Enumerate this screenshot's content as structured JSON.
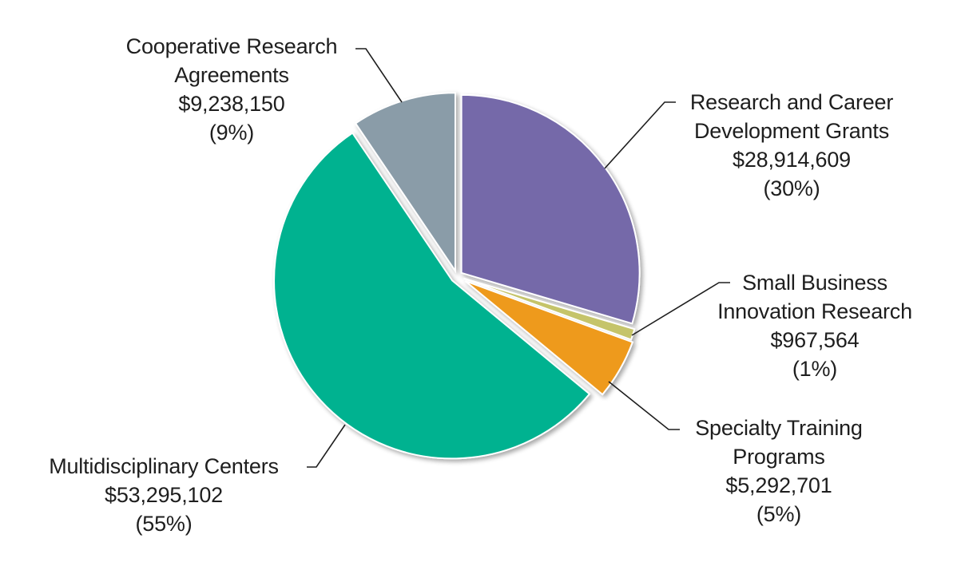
{
  "chart_data": {
    "type": "pie",
    "title": "",
    "start_angle": "12 o'clock, clockwise",
    "slices": [
      {
        "key": "research-career",
        "name_lines": [
          "Research and Career",
          "Development Grants"
        ],
        "name": "Research and Career Development Grants",
        "value": 28914609,
        "value_label": "$28,914,609",
        "percent": 30,
        "percent_label": "(30%)",
        "color": "#7469a9"
      },
      {
        "key": "sbir",
        "name_lines": [
          "Small Business",
          "Innovation Research"
        ],
        "name": "Small Business Innovation Research",
        "value": 967564,
        "value_label": "$967,564",
        "percent": 1,
        "percent_label": "(1%)",
        "color": "#c5c46a"
      },
      {
        "key": "specialty-training",
        "name_lines": [
          "Specialty Training",
          "Programs"
        ],
        "name": "Specialty Training Programs",
        "value": 5292701,
        "value_label": "$5,292,701",
        "percent": 5,
        "percent_label": "(5%)",
        "color": "#ee9a1e"
      },
      {
        "key": "multidisciplinary",
        "name_lines": [
          "Multidisciplinary Centers"
        ],
        "name": "Multidisciplinary Centers",
        "value": 53295102,
        "value_label": "$53,295,102",
        "percent": 55,
        "percent_label": "(55%)",
        "color": "#00b290"
      },
      {
        "key": "cooperative",
        "name_lines": [
          "Cooperative Research",
          "Agreements"
        ],
        "name": "Cooperative Research Agreements",
        "value": 9238150,
        "value_label": "$9,238,150",
        "percent": 9,
        "percent_label": "(9%)",
        "color": "#8a9ca8"
      }
    ],
    "legend": "none (callout labels with leader lines)"
  }
}
